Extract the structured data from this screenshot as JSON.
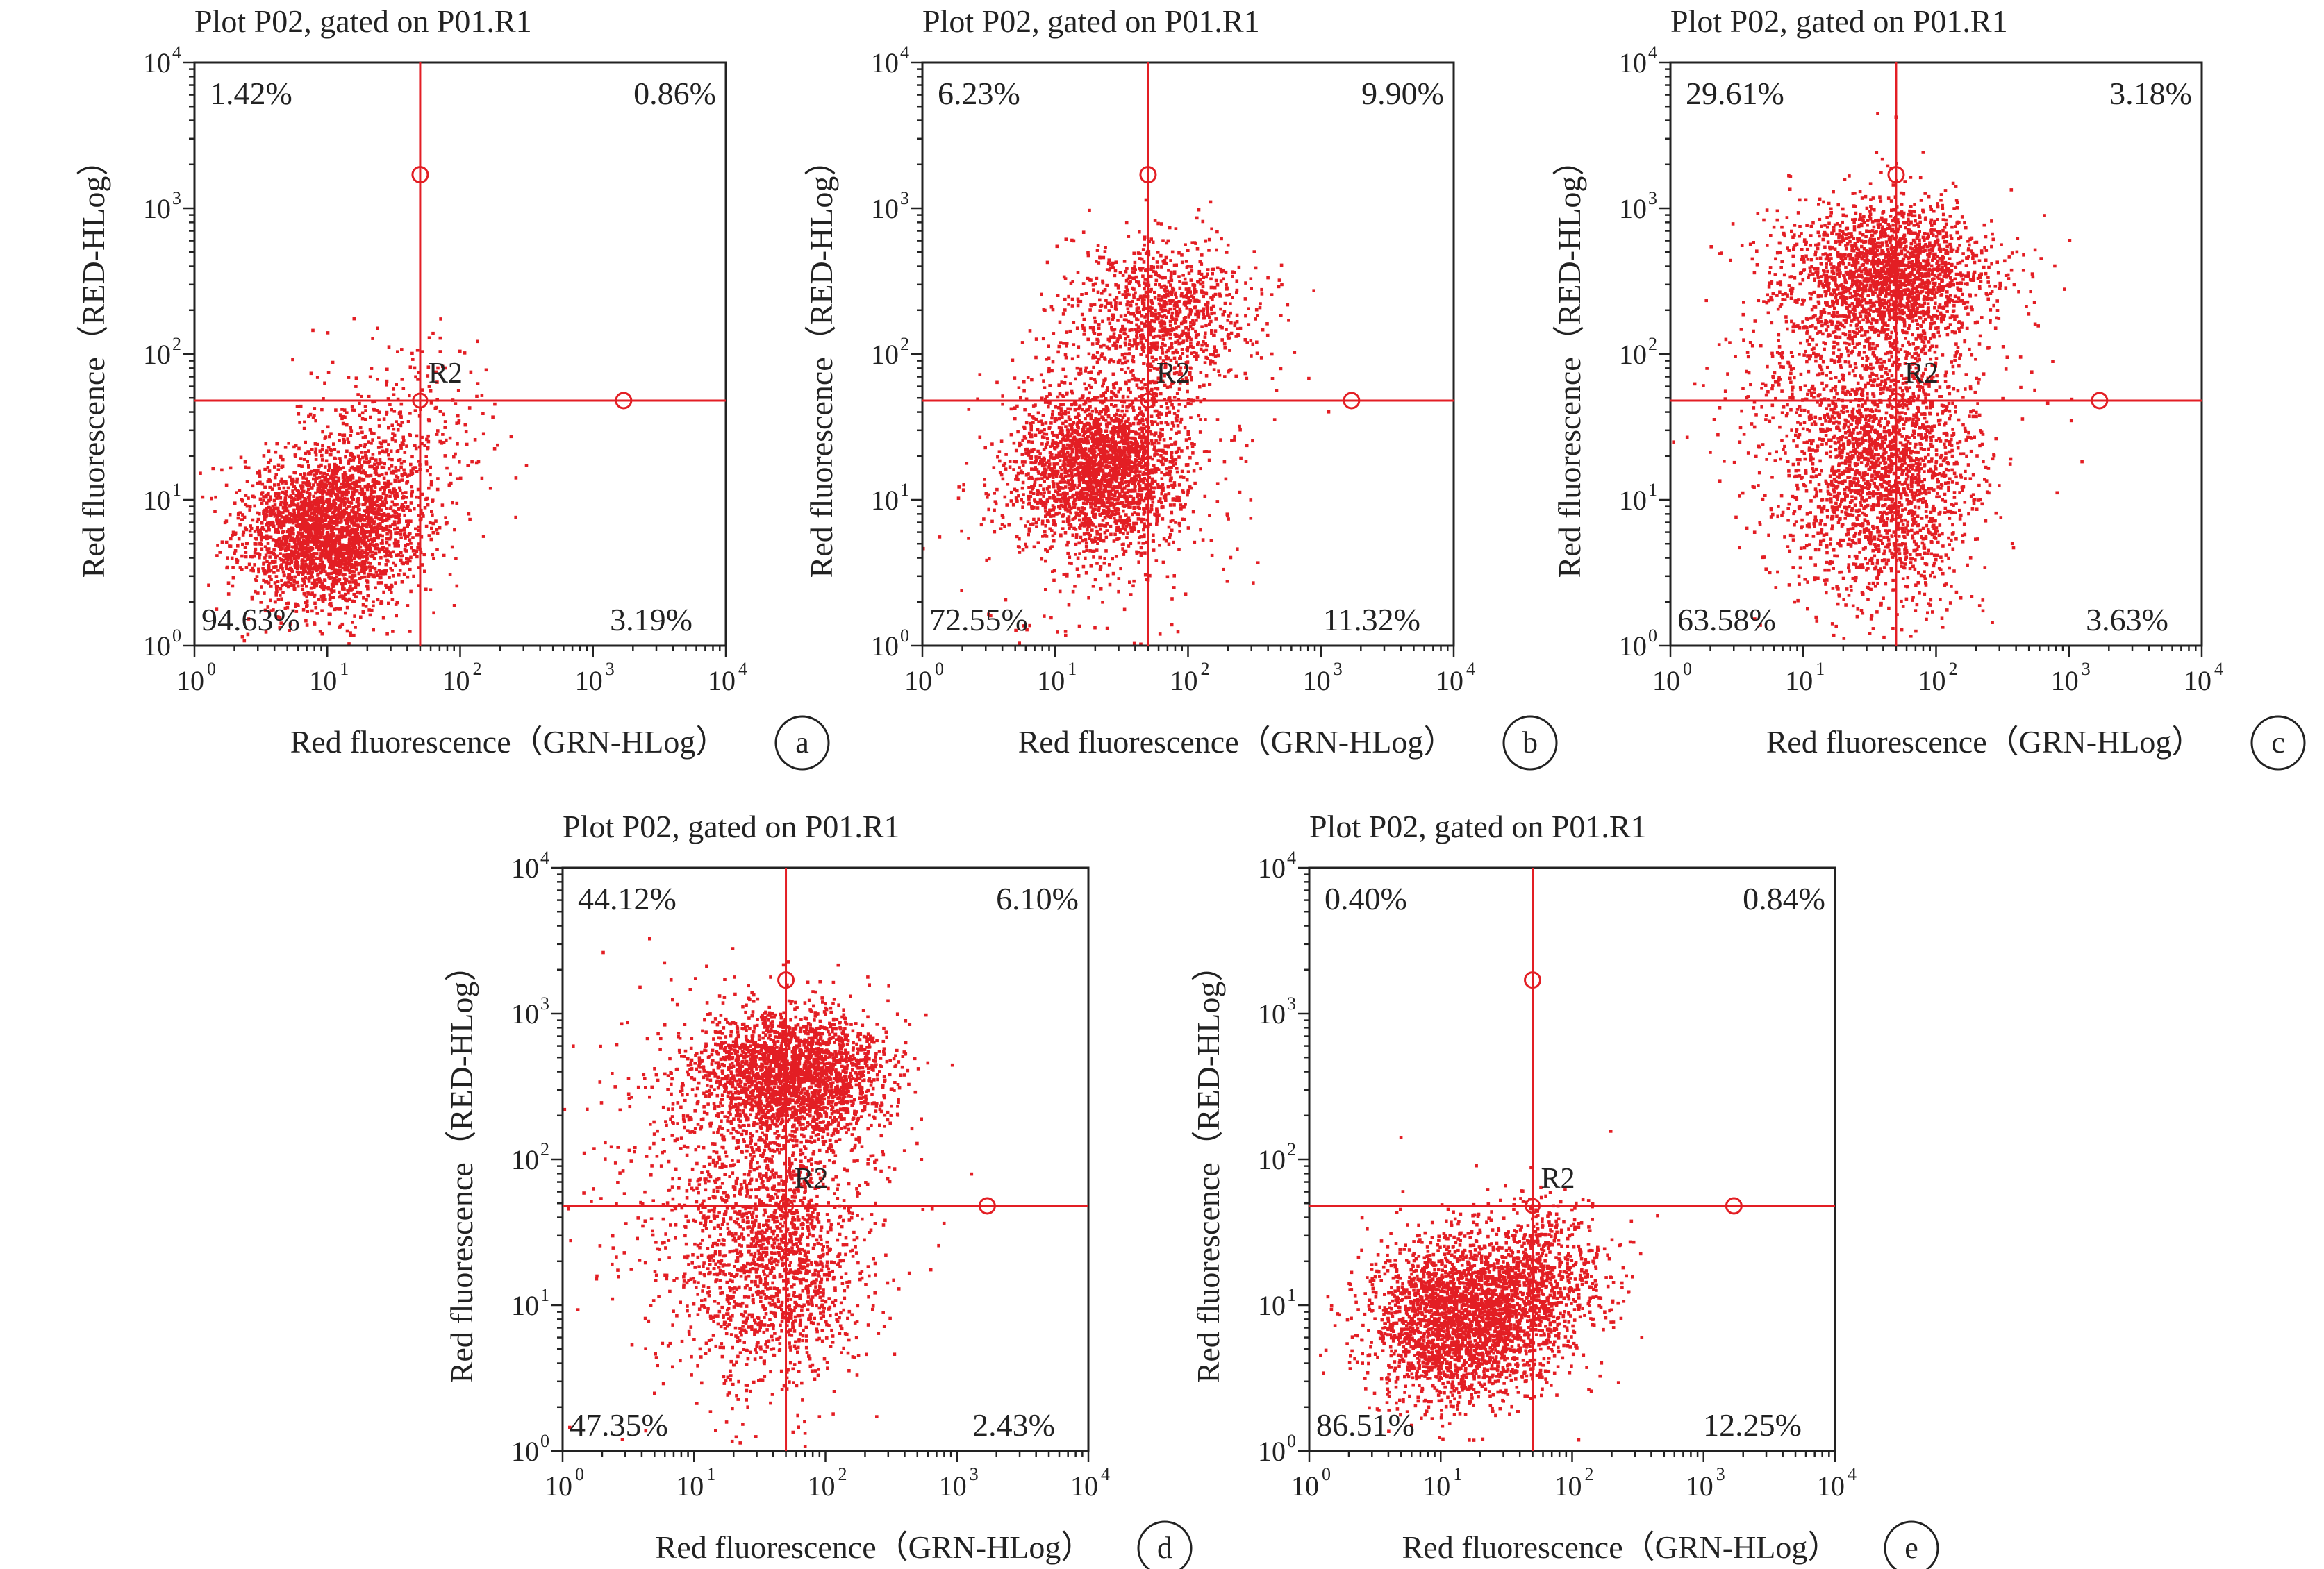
{
  "style": {
    "point_color": "#e31e24",
    "gate_color": "#e31e24",
    "frame_color": "#222222"
  },
  "chart_data": [
    {
      "type": "scatter",
      "panel_letter": "a",
      "title": "Plot P02, gated on P01.R1",
      "xlabel": "Red fluorescence（GRN-HLog）",
      "ylabel": "Red fluorescence（RED-HLog）",
      "xscale": "log",
      "yscale": "log",
      "xlim": [
        1,
        10000
      ],
      "ylim": [
        1,
        10000
      ],
      "tick_labels": [
        "10",
        "10",
        "10",
        "10",
        "10"
      ],
      "tick_exponents": [
        "0",
        "1",
        "2",
        "3",
        "4"
      ],
      "region_label": "R2",
      "gate": {
        "x": 50,
        "y": 48,
        "handle_top_y": 1700,
        "handle_right_x": 1700
      },
      "quadrants": {
        "upper_left": "1.42%",
        "upper_right": "0.86%",
        "lower_left": "94.63%",
        "lower_right": "3.19%"
      },
      "clusters": [
        {
          "cx": 10,
          "cy": 6,
          "sx": 0.32,
          "sy": 0.26,
          "n": 2600
        },
        {
          "cx": 30,
          "cy": 20,
          "sx": 0.35,
          "sy": 0.35,
          "n": 500
        }
      ]
    },
    {
      "type": "scatter",
      "panel_letter": "b",
      "title": "Plot P02, gated on P01.R1",
      "xlabel": "Red fluorescence（GRN-HLog）",
      "ylabel": "Red fluorescence（RED-HLog）",
      "xscale": "log",
      "yscale": "log",
      "xlim": [
        1,
        10000
      ],
      "ylim": [
        1,
        10000
      ],
      "tick_labels": [
        "10",
        "10",
        "10",
        "10",
        "10"
      ],
      "tick_exponents": [
        "0",
        "1",
        "2",
        "3",
        "4"
      ],
      "region_label": "R2",
      "gate": {
        "x": 50,
        "y": 48,
        "handle_top_y": 1700,
        "handle_right_x": 1700
      },
      "quadrants": {
        "upper_left": "6.23%",
        "upper_right": "9.90%",
        "lower_left": "72.55%",
        "lower_right": "11.32%"
      },
      "clusters": [
        {
          "cx": 22,
          "cy": 17,
          "sx": 0.3,
          "sy": 0.26,
          "n": 2100
        },
        {
          "cx": 60,
          "cy": 180,
          "sx": 0.35,
          "sy": 0.28,
          "n": 1100
        },
        {
          "cx": 20,
          "cy": 12,
          "sx": 0.5,
          "sy": 0.45,
          "n": 500
        }
      ]
    },
    {
      "type": "scatter",
      "panel_letter": "c",
      "title": "Plot P02, gated on P01.R1",
      "xlabel": "Red fluorescence（GRN-HLog）",
      "ylabel": "Red fluorescence（RED-HLog）",
      "xscale": "log",
      "yscale": "log",
      "xlim": [
        1,
        10000
      ],
      "ylim": [
        1,
        10000
      ],
      "tick_labels": [
        "10",
        "10",
        "10",
        "10",
        "10"
      ],
      "tick_exponents": [
        "0",
        "1",
        "2",
        "3",
        "4"
      ],
      "region_label": "R2",
      "gate": {
        "x": 50,
        "y": 48,
        "handle_top_y": 1700,
        "handle_right_x": 1700
      },
      "quadrants": {
        "upper_left": "29.61%",
        "upper_right": "3.18%",
        "lower_left": "63.58%",
        "lower_right": "3.63%"
      },
      "clusters": [
        {
          "cx": 45,
          "cy": 350,
          "sx": 0.38,
          "sy": 0.25,
          "n": 1900
        },
        {
          "cx": 40,
          "cy": 15,
          "sx": 0.32,
          "sy": 0.45,
          "n": 1800
        },
        {
          "cx": 25,
          "cy": 60,
          "sx": 0.55,
          "sy": 0.6,
          "n": 900
        }
      ]
    },
    {
      "type": "scatter",
      "panel_letter": "d",
      "title": "Plot P02, gated on P01.R1",
      "xlabel": "Red fluorescence（GRN-HLog）",
      "ylabel": "Red fluorescence（RED-HLog）",
      "xscale": "log",
      "yscale": "log",
      "xlim": [
        1,
        10000
      ],
      "ylim": [
        1,
        10000
      ],
      "tick_labels": [
        "10",
        "10",
        "10",
        "10",
        "10"
      ],
      "tick_exponents": [
        "0",
        "1",
        "2",
        "3",
        "4"
      ],
      "region_label": "R2",
      "gate": {
        "x": 50,
        "y": 48,
        "handle_top_y": 1700,
        "handle_right_x": 1700
      },
      "quadrants": {
        "upper_left": "44.12%",
        "upper_right": "6.10%",
        "lower_left": "47.35%",
        "lower_right": "2.43%"
      },
      "clusters": [
        {
          "cx": 55,
          "cy": 380,
          "sx": 0.35,
          "sy": 0.22,
          "n": 2400
        },
        {
          "cx": 40,
          "cy": 20,
          "sx": 0.32,
          "sy": 0.45,
          "n": 1200
        },
        {
          "cx": 25,
          "cy": 60,
          "sx": 0.55,
          "sy": 0.6,
          "n": 900
        }
      ]
    },
    {
      "type": "scatter",
      "panel_letter": "e",
      "title": "Plot P02, gated on P01.R1",
      "xlabel": "Red fluorescence（GRN-HLog）",
      "ylabel": "Red fluorescence（RED-HLog）",
      "xscale": "log",
      "yscale": "log",
      "xlim": [
        1,
        10000
      ],
      "ylim": [
        1,
        10000
      ],
      "tick_labels": [
        "10",
        "10",
        "10",
        "10",
        "10"
      ],
      "tick_exponents": [
        "0",
        "1",
        "2",
        "3",
        "4"
      ],
      "region_label": "R2",
      "gate": {
        "x": 50,
        "y": 48,
        "handle_top_y": 1700,
        "handle_right_x": 1700
      },
      "quadrants": {
        "upper_left": "0.40%",
        "upper_right": "0.84%",
        "lower_left": "86.51%",
        "lower_right": "12.25%"
      },
      "clusters": [
        {
          "cx": 15,
          "cy": 8,
          "sx": 0.35,
          "sy": 0.28,
          "n": 2600
        },
        {
          "cx": 60,
          "cy": 15,
          "sx": 0.3,
          "sy": 0.25,
          "n": 700
        }
      ]
    }
  ]
}
